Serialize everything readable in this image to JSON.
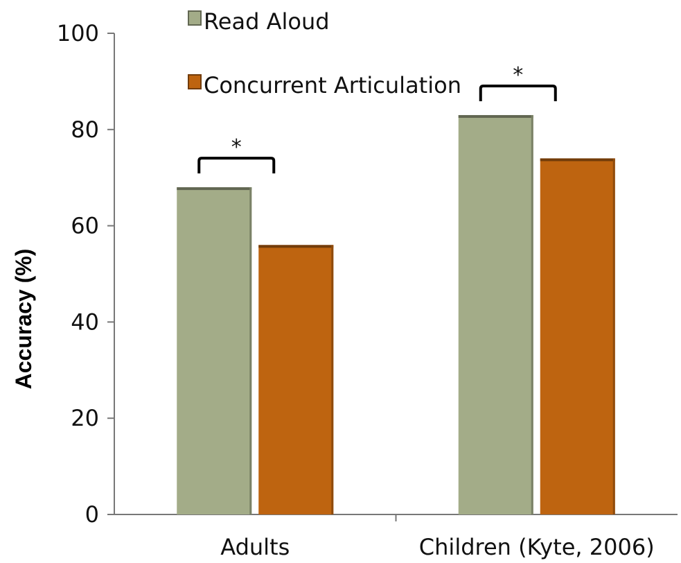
{
  "chart_data": {
    "type": "bar",
    "categories": [
      "Adults",
      "Children (Kyte, 2006)"
    ],
    "series": [
      {
        "name": "Read Aloud",
        "values": [
          68,
          83
        ],
        "color": "#a3ac88"
      },
      {
        "name": "Concurrent Articulation",
        "values": [
          56,
          74
        ],
        "color": "#be6410"
      }
    ],
    "ylabel": "Accuracy (%)",
    "ylim": [
      0,
      100
    ],
    "yticks": [
      0,
      20,
      40,
      60,
      80,
      100
    ],
    "legend_position": "top",
    "annotations": [
      "*",
      "*"
    ],
    "grid": false
  }
}
